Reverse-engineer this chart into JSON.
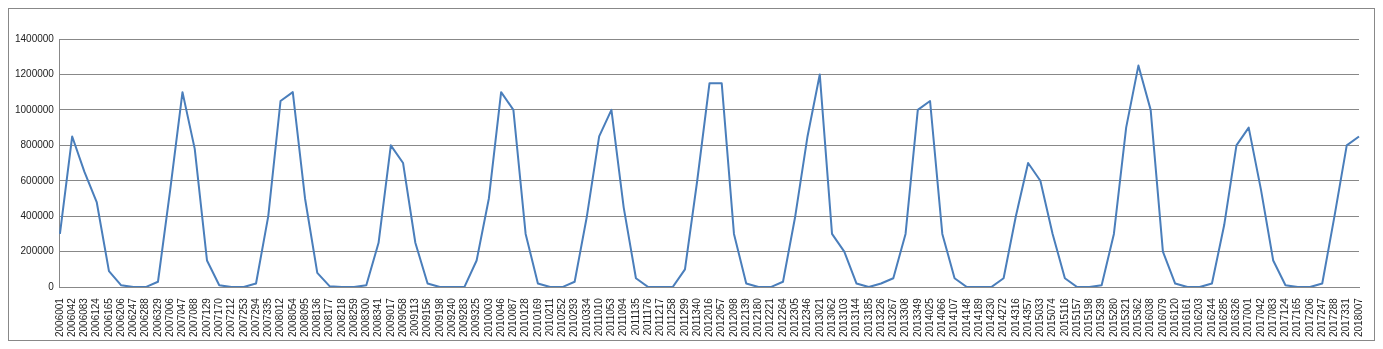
{
  "chart_data": {
    "type": "line",
    "categories": [
      "2006001",
      "2006042",
      "2006083",
      "2006124",
      "2006165",
      "2006206",
      "2006247",
      "2006288",
      "2006329",
      "2007006",
      "2007047",
      "2007088",
      "2007129",
      "2007170",
      "2007212",
      "2007253",
      "2007294",
      "2007335",
      "2008012",
      "2008054",
      "2008095",
      "2008136",
      "2008177",
      "2008218",
      "2008259",
      "2008300",
      "2008341",
      "2009017",
      "2009058",
      "2009113",
      "2009156",
      "2009198",
      "2009240",
      "2009283",
      "2009325",
      "2010003",
      "2010046",
      "2010087",
      "2010128",
      "2010169",
      "2010211",
      "2010252",
      "2010293",
      "2010334",
      "2011010",
      "2011053",
      "2011094",
      "2011135",
      "2011176",
      "2011217",
      "2011258",
      "2011299",
      "2011340",
      "2012016",
      "2012057",
      "2012098",
      "2012139",
      "2012180",
      "2012221",
      "2012264",
      "2012305",
      "2012346",
      "2013021",
      "2013062",
      "2013103",
      "2013144",
      "2013185",
      "2013226",
      "2013267",
      "2013308",
      "2013349",
      "2014025",
      "2014066",
      "2014107",
      "2014148",
      "2014189",
      "2014230",
      "2014272",
      "2014316",
      "2014357",
      "2015033",
      "2015074",
      "2015116",
      "2015157",
      "2015198",
      "2015239",
      "2015280",
      "2015321",
      "2015362",
      "2016038",
      "2016079",
      "2016120",
      "2016161",
      "2016203",
      "2016244",
      "2016285",
      "2016326",
      "2017001",
      "2017042",
      "2017083",
      "2017124",
      "2017165",
      "2017206",
      "2017247",
      "2017288",
      "2017331",
      "2018007"
    ],
    "series": [
      {
        "color": "#4a7ebb",
        "values": [
          300000,
          850000,
          650000,
          480000,
          90000,
          10000,
          0,
          0,
          30000,
          550000,
          1100000,
          780000,
          150000,
          10000,
          0,
          0,
          20000,
          400000,
          1050000,
          1100000,
          500000,
          80000,
          5000,
          0,
          0,
          10000,
          250000,
          800000,
          700000,
          250000,
          20000,
          0,
          0,
          0,
          150000,
          500000,
          1100000,
          1000000,
          300000,
          20000,
          0,
          0,
          30000,
          400000,
          850000,
          1000000,
          450000,
          50000,
          0,
          0,
          0,
          100000,
          600000,
          1150000,
          1150000,
          300000,
          20000,
          0,
          0,
          30000,
          400000,
          850000,
          1200000,
          300000,
          200000,
          20000,
          0,
          20000,
          50000,
          300000,
          1000000,
          1050000,
          300000,
          50000,
          0,
          0,
          0,
          50000,
          400000,
          700000,
          600000,
          300000,
          50000,
          0,
          0,
          10000,
          300000,
          900000,
          1250000,
          1000000,
          200000,
          20000,
          0,
          0,
          20000,
          350000,
          800000,
          900000,
          550000,
          150000,
          10000,
          0,
          0,
          20000,
          400000,
          800000,
          850000
        ]
      }
    ],
    "ylim": [
      0,
      1400000
    ],
    "yticks": [
      0,
      200000,
      400000,
      600000,
      800000,
      1000000,
      1200000,
      1400000
    ],
    "grid": "y",
    "legend": false,
    "marker": "none",
    "line_style": "solid"
  }
}
